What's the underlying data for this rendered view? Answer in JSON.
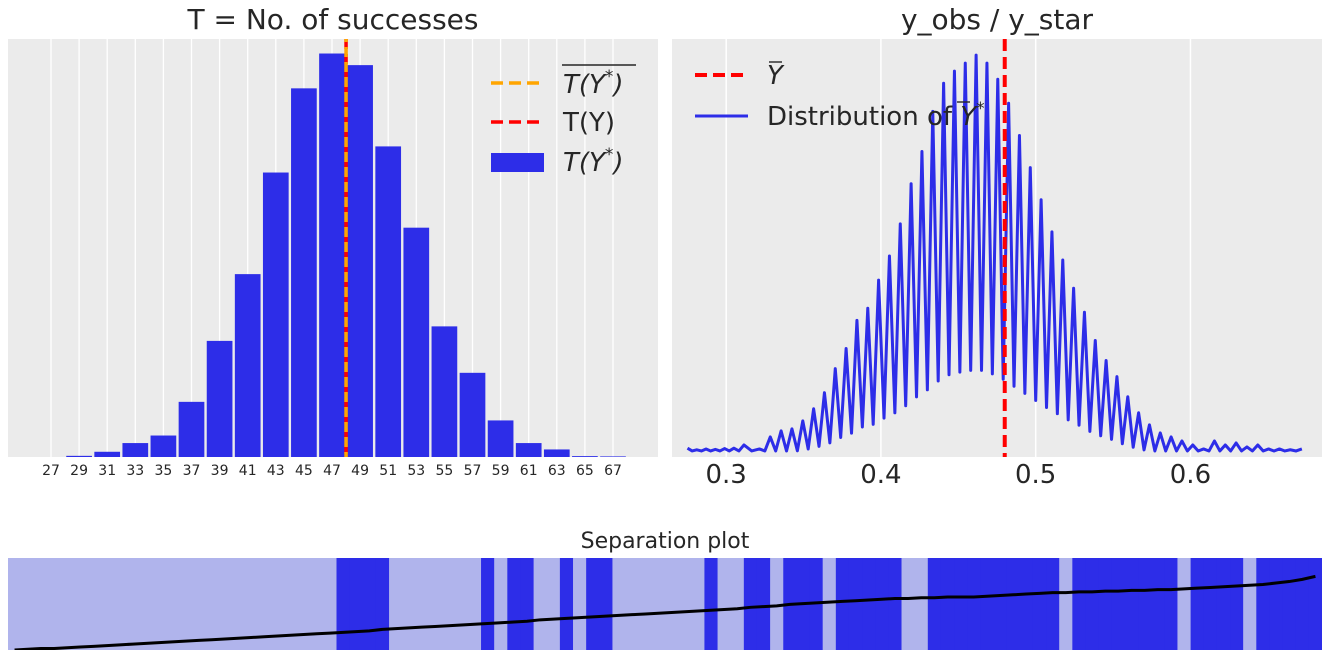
{
  "colors": {
    "panel_bg": "#ebebeb",
    "grid": "#ffffff",
    "bar_blue": "#2d2de8",
    "line_blue": "#2d2de8",
    "observed_red": "#ff0000",
    "mean_orange": "#ffa500",
    "sep_light": "#b0b4ec",
    "sep_dark": "#2d2de8",
    "sep_line": "#000000",
    "text": "#262626"
  },
  "chart_data": [
    {
      "type": "bar",
      "title": "T = No. of successes",
      "xlabel": "",
      "ylabel": "",
      "categories": [
        "27",
        "29",
        "31",
        "33",
        "35",
        "37",
        "39",
        "41",
        "43",
        "45",
        "47",
        "49",
        "51",
        "53",
        "55",
        "57",
        "59",
        "61",
        "63",
        "65",
        "67"
      ],
      "values": [
        0,
        0.2,
        0.9,
        2.4,
        3.7,
        9.5,
        20,
        31.5,
        49,
        63.5,
        69.5,
        67.5,
        53.5,
        39.5,
        22.5,
        14.5,
        6.3,
        2.4,
        1.3,
        0.15,
        0.1
      ],
      "ylim": [
        0,
        72
      ],
      "observed_value": 48,
      "mean_value": 48,
      "legend": {
        "position": "top-right",
        "entries": [
          {
            "label": "T(Y*) bar",
            "style": "dashed",
            "color": "#ffa500"
          },
          {
            "label": "T(Y)",
            "style": "dashed",
            "color": "#ff0000"
          },
          {
            "label": "T(Y*)",
            "style": "bar",
            "color": "#2d2de8"
          }
        ]
      },
      "grid": "vertical"
    },
    {
      "type": "line",
      "title": "y_obs / y_star",
      "xlabel": "",
      "ylabel": "",
      "xlim": [
        0.265,
        0.685
      ],
      "ylim": [
        0,
        1.04
      ],
      "xticks": [
        "0.3",
        "0.4",
        "0.5",
        "0.6"
      ],
      "observed_mean": 0.48,
      "series": [
        {
          "name": "Distribution of Y* bar",
          "x": [
            0.275,
            0.281,
            0.287,
            0.293,
            0.299,
            0.305,
            0.3115,
            0.3215,
            0.3285,
            0.3355,
            0.3425,
            0.3495,
            0.3565,
            0.3635,
            0.3705,
            0.3775,
            0.3845,
            0.3915,
            0.3985,
            0.4055,
            0.4125,
            0.4195,
            0.4265,
            0.4335,
            0.4405,
            0.4475,
            0.4545,
            0.4615,
            0.4685,
            0.4755,
            0.4825,
            0.4895,
            0.4965,
            0.5035,
            0.5105,
            0.5175,
            0.5245,
            0.5315,
            0.5385,
            0.5455,
            0.5525,
            0.5595,
            0.5665,
            0.5735,
            0.5805,
            0.5875,
            0.5945,
            0.6015,
            0.6085,
            0.6155,
            0.6225,
            0.6295,
            0.6365,
            0.6435,
            0.6505,
            0.6575,
            0.6645,
            0.672
          ],
          "y": [
            0.022,
            0.018,
            0.02,
            0.019,
            0.021,
            0.022,
            0.03,
            0.02,
            0.05,
            0.065,
            0.07,
            0.09,
            0.12,
            0.16,
            0.22,
            0.27,
            0.34,
            0.37,
            0.44,
            0.5,
            0.58,
            0.68,
            0.76,
            0.86,
            0.93,
            0.96,
            0.98,
            1.0,
            0.98,
            0.94,
            0.88,
            0.8,
            0.72,
            0.64,
            0.56,
            0.49,
            0.42,
            0.36,
            0.29,
            0.24,
            0.2,
            0.15,
            0.11,
            0.08,
            0.06,
            0.05,
            0.04,
            0.03,
            0.02,
            0.04,
            0.03,
            0.035,
            0.025,
            0.03,
            0.02,
            0.02,
            0.018,
            0.02
          ],
          "color": "#2d2de8"
        }
      ],
      "legend": {
        "position": "top-left",
        "entries": [
          {
            "label": "Y bar",
            "style": "dashed",
            "color": "#ff0000"
          },
          {
            "label": "Distribution of Y* bar",
            "style": "line",
            "color": "#2d2de8"
          }
        ]
      },
      "grid": "vertical"
    },
    {
      "type": "heatmap",
      "title": "Separation plot",
      "n_obs": 100,
      "outcomes": [
        0,
        0,
        0,
        0,
        0,
        0,
        0,
        0,
        0,
        0,
        0,
        0,
        0,
        0,
        0,
        0,
        0,
        0,
        0,
        0,
        0,
        0,
        0,
        0,
        0,
        1,
        1,
        1,
        1,
        0,
        0,
        0,
        0,
        0,
        0,
        0,
        1,
        0,
        1,
        1,
        0,
        0,
        1,
        0,
        1,
        1,
        0,
        0,
        0,
        0,
        0,
        0,
        0,
        1,
        0,
        0,
        1,
        1,
        0,
        1,
        1,
        1,
        0,
        1,
        1,
        1,
        1,
        1,
        0,
        0,
        1,
        1,
        1,
        1,
        1,
        1,
        1,
        1,
        1,
        1,
        0,
        1,
        1,
        1,
        1,
        1,
        1,
        1,
        1,
        0,
        1,
        1,
        1,
        1,
        0,
        1,
        1,
        1,
        1,
        1
      ],
      "predicted": [
        0.0,
        0.01,
        0.02,
        0.02,
        0.03,
        0.04,
        0.05,
        0.06,
        0.07,
        0.08,
        0.09,
        0.1,
        0.11,
        0.12,
        0.13,
        0.14,
        0.15,
        0.16,
        0.17,
        0.18,
        0.19,
        0.2,
        0.21,
        0.22,
        0.23,
        0.24,
        0.25,
        0.26,
        0.28,
        0.29,
        0.3,
        0.31,
        0.32,
        0.33,
        0.34,
        0.35,
        0.36,
        0.37,
        0.38,
        0.39,
        0.41,
        0.42,
        0.43,
        0.44,
        0.45,
        0.46,
        0.47,
        0.48,
        0.49,
        0.5,
        0.51,
        0.52,
        0.53,
        0.54,
        0.55,
        0.56,
        0.58,
        0.59,
        0.6,
        0.62,
        0.63,
        0.64,
        0.65,
        0.66,
        0.67,
        0.68,
        0.69,
        0.7,
        0.7,
        0.71,
        0.71,
        0.72,
        0.72,
        0.72,
        0.73,
        0.74,
        0.75,
        0.76,
        0.77,
        0.78,
        0.78,
        0.79,
        0.79,
        0.8,
        0.8,
        0.81,
        0.81,
        0.82,
        0.82,
        0.83,
        0.84,
        0.85,
        0.86,
        0.87,
        0.88,
        0.89,
        0.91,
        0.93,
        0.96,
        1.0
      ]
    }
  ]
}
